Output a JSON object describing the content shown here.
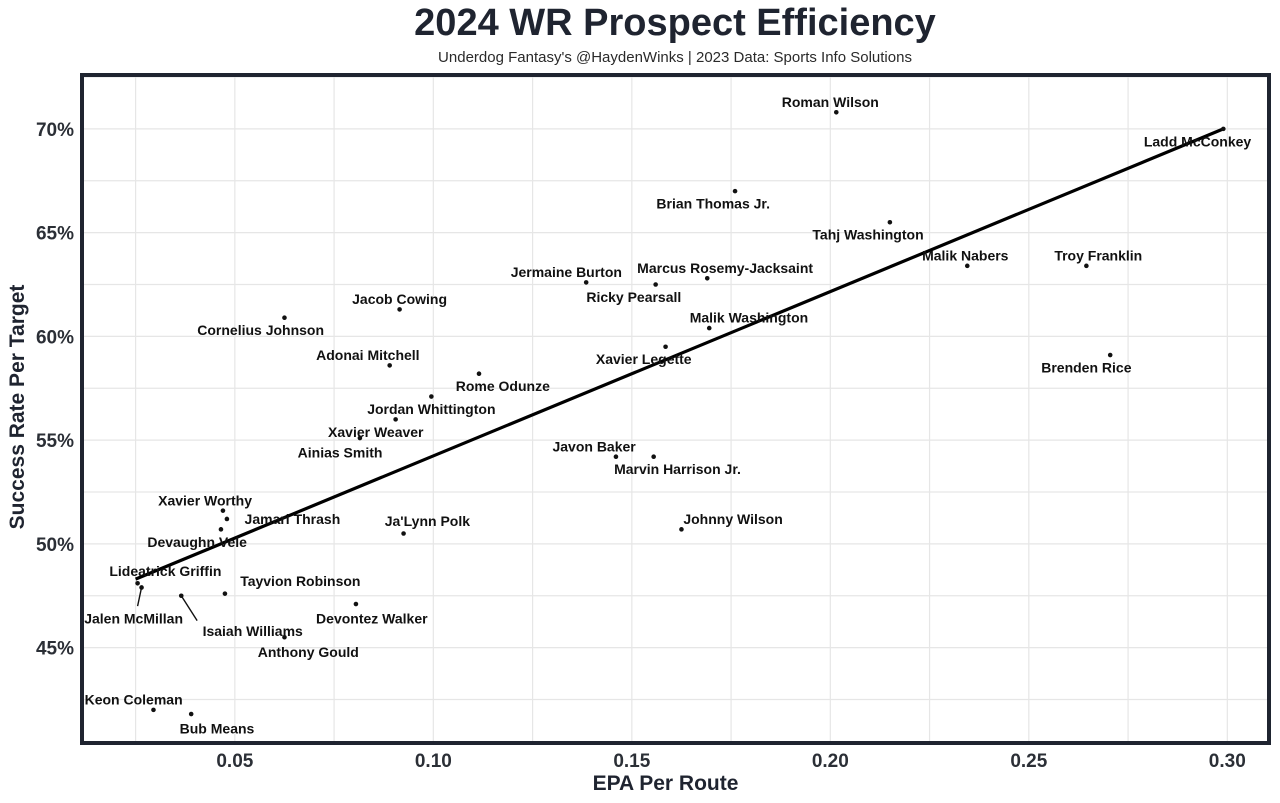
{
  "title": "2024 WR Prospect Efficiency",
  "subtitle": "Underdog Fantasy's @HaydenWinks | 2023 Data: Sports Info Solutions",
  "colors": {
    "frame": "#1f2430",
    "grid": "#e6e6e6",
    "point": "#111111",
    "line": "#000000"
  },
  "chart_data": {
    "type": "scatter",
    "title": "2024 WR Prospect Efficiency",
    "xlabel": "EPA Per Route",
    "ylabel": "Success Rate Per Target",
    "xlim": [
      0.012,
      0.31
    ],
    "ylim": [
      40.5,
      72.5
    ],
    "xticks": [
      0.05,
      0.1,
      0.15,
      0.2,
      0.25,
      0.3
    ],
    "xtick_labels": [
      "0.05",
      "0.10",
      "0.15",
      "0.20",
      "0.25",
      "0.30"
    ],
    "yticks": [
      45,
      50,
      55,
      60,
      65,
      70
    ],
    "ytick_labels": [
      "45%",
      "50%",
      "55%",
      "60%",
      "65%",
      "70%"
    ],
    "trendline": {
      "x": [
        0.025,
        0.299
      ],
      "y": [
        48.3,
        70.0
      ]
    },
    "points": [
      {
        "name": "Roman Wilson",
        "x": 0.2015,
        "y": 70.8,
        "lx": 0.2,
        "ly": 71.3
      },
      {
        "name": "Ladd McConkey",
        "x": 0.299,
        "y": 70.0,
        "lx": 0.2925,
        "ly": 69.4
      },
      {
        "name": "Brian Thomas Jr.",
        "x": 0.176,
        "y": 67.0,
        "lx": 0.1705,
        "ly": 66.4
      },
      {
        "name": "Tahj Washington",
        "x": 0.215,
        "y": 65.5,
        "lx": 0.2095,
        "ly": 64.9
      },
      {
        "name": "Malik Nabers",
        "x": 0.2345,
        "y": 63.4,
        "lx": 0.234,
        "ly": 63.9
      },
      {
        "name": "Troy Franklin",
        "x": 0.2645,
        "y": 63.4,
        "lx": 0.2675,
        "ly": 63.9
      },
      {
        "name": "Marcus Rosemy-Jacksaint",
        "x": 0.169,
        "y": 62.8,
        "lx": 0.1735,
        "ly": 63.3
      },
      {
        "name": "Jermaine Burton",
        "x": 0.1385,
        "y": 62.6,
        "lx": 0.1335,
        "ly": 63.1
      },
      {
        "name": "Ricky Pearsall",
        "x": 0.156,
        "y": 62.5,
        "lx": 0.1505,
        "ly": 61.9
      },
      {
        "name": "Jacob Cowing",
        "x": 0.0915,
        "y": 61.3,
        "lx": 0.0915,
        "ly": 61.8
      },
      {
        "name": "Cornelius Johnson",
        "x": 0.0625,
        "y": 60.9,
        "lx": 0.0565,
        "ly": 60.3
      },
      {
        "name": "Malik Washington",
        "x": 0.1695,
        "y": 60.4,
        "lx": 0.1795,
        "ly": 60.9
      },
      {
        "name": "Xavier Legette",
        "x": 0.1585,
        "y": 59.5,
        "lx": 0.153,
        "ly": 58.9
      },
      {
        "name": "Brenden Rice",
        "x": 0.2705,
        "y": 59.1,
        "lx": 0.2645,
        "ly": 58.5
      },
      {
        "name": "Adonai Mitchell",
        "x": 0.089,
        "y": 58.6,
        "lx": 0.0835,
        "ly": 59.1
      },
      {
        "name": "Rome Odunze",
        "x": 0.1115,
        "y": 58.2,
        "lx": 0.1175,
        "ly": 57.6
      },
      {
        "name": "Jordan Whittington",
        "x": 0.0995,
        "y": 57.1,
        "lx": 0.0995,
        "ly": 56.5
      },
      {
        "name": "Xavier Weaver",
        "x": 0.0905,
        "y": 56.0,
        "lx": 0.0855,
        "ly": 55.4
      },
      {
        "name": "Ainias Smith",
        "x": 0.0815,
        "y": 55.1,
        "lx": 0.0765,
        "ly": 54.4
      },
      {
        "name": "Javon Baker",
        "x": 0.146,
        "y": 54.2,
        "lx": 0.1405,
        "ly": 54.7
      },
      {
        "name": "Marvin Harrison Jr.",
        "x": 0.1555,
        "y": 54.2,
        "lx": 0.1615,
        "ly": 53.6
      },
      {
        "name": "Xavier Worthy",
        "x": 0.047,
        "y": 51.6,
        "lx": 0.0425,
        "ly": 52.1
      },
      {
        "name": "Jamari Thrash",
        "x": 0.048,
        "y": 51.2,
        "lx": 0.0645,
        "ly": 51.2
      },
      {
        "name": "Ja'Lynn Polk",
        "x": 0.0925,
        "y": 50.5,
        "lx": 0.0985,
        "ly": 51.1
      },
      {
        "name": "Johnny Wilson",
        "x": 0.1625,
        "y": 50.7,
        "lx": 0.1755,
        "ly": 51.2
      },
      {
        "name": "Devaughn Vele",
        "x": 0.0465,
        "y": 50.7,
        "lx": 0.0405,
        "ly": 50.1
      },
      {
        "name": "Lideatrick Griffin",
        "x": 0.0255,
        "y": 48.1,
        "lx": 0.0325,
        "ly": 48.7
      },
      {
        "name": "Tayvion Robinson",
        "x": 0.0475,
        "y": 47.6,
        "lx": 0.0665,
        "ly": 48.2
      },
      {
        "name": "Jalen McMillan",
        "x": 0.0265,
        "y": 47.9,
        "lx": 0.0245,
        "ly": 46.4,
        "leader": [
          0.0265,
          47.9,
          0.0255,
          47.0
        ]
      },
      {
        "name": "Isaiah Williams",
        "x": 0.0365,
        "y": 47.5,
        "lx": 0.0545,
        "ly": 45.8,
        "leader": [
          0.0365,
          47.5,
          0.0405,
          46.3
        ]
      },
      {
        "name": "Devontez Walker",
        "x": 0.0805,
        "y": 47.1,
        "lx": 0.0845,
        "ly": 46.4
      },
      {
        "name": "Anthony Gould",
        "x": 0.0625,
        "y": 45.5,
        "lx": 0.0685,
        "ly": 44.8
      },
      {
        "name": "Keon Coleman",
        "x": 0.0295,
        "y": 42.0,
        "lx": 0.0245,
        "ly": 42.5
      },
      {
        "name": "Bub Means",
        "x": 0.039,
        "y": 41.8,
        "lx": 0.0455,
        "ly": 41.1
      }
    ]
  }
}
